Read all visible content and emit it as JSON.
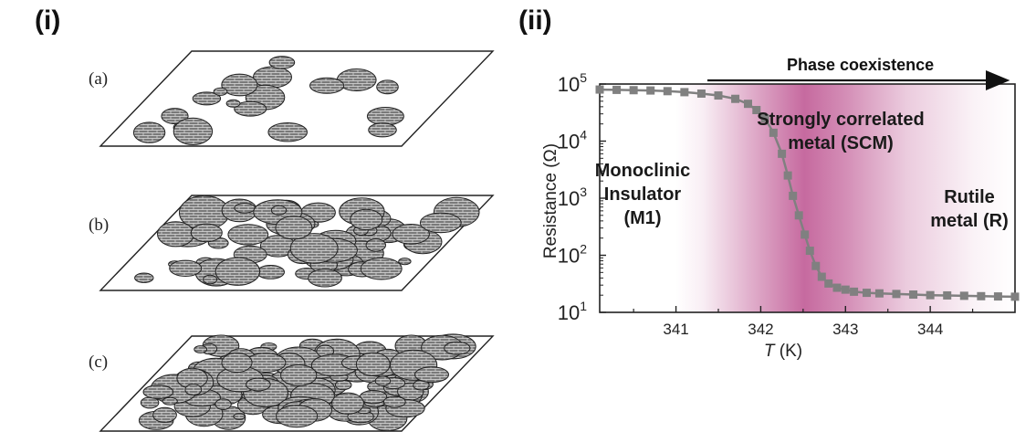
{
  "panels": {
    "left_label": "(i)",
    "right_label": "(ii)",
    "sub_labels": [
      "(a)",
      "(b)",
      "(c)"
    ]
  },
  "annotations": {
    "phase_coexistence": "Phase coexistence",
    "region_m1": [
      "Monoclinic",
      "Insulator",
      "(M1)"
    ],
    "region_scm": [
      "Strongly correlated",
      "metal (SCM)"
    ],
    "region_r": [
      "Rutile",
      "metal (R)"
    ]
  },
  "colors": {
    "series": "#808080",
    "shade": "#b0307a",
    "domain_fill": "#6e6e6e"
  },
  "chart_data": {
    "type": "scatter",
    "title": "",
    "xlabel": "T (K)",
    "ylabel": "Resistance (Ω)",
    "xlim": [
      340.1,
      345.0
    ],
    "ylim": [
      10,
      100000
    ],
    "yscale": "log",
    "x_ticks": [
      "341",
      "342",
      "343",
      "344"
    ],
    "y_ticks": [
      {
        "base": "10",
        "exp": "1"
      },
      {
        "base": "10",
        "exp": "2"
      },
      {
        "base": "10",
        "exp": "3"
      },
      {
        "base": "10",
        "exp": "4"
      },
      {
        "base": "10",
        "exp": "5"
      }
    ],
    "series": [
      {
        "x": [
          340.1,
          340.3,
          340.5,
          340.7,
          340.9,
          341.1,
          341.3,
          341.5,
          341.7,
          341.85,
          341.95,
          342.05,
          342.15,
          342.25,
          342.32,
          342.38,
          342.45,
          342.52,
          342.58,
          342.65,
          342.72,
          342.8,
          342.9,
          343.0,
          343.1,
          343.25,
          343.4,
          343.6,
          343.8,
          344.0,
          344.2,
          344.4,
          344.6,
          344.8,
          345.0
        ],
        "y": [
          80000,
          79000,
          78000,
          77000,
          75000,
          72000,
          68000,
          63000,
          55000,
          45000,
          35000,
          25000,
          14000,
          6000,
          2500,
          1100,
          500,
          230,
          120,
          65,
          42,
          32,
          27,
          25,
          23,
          22,
          21.5,
          21,
          20.5,
          20,
          19.8,
          19.5,
          19.2,
          19,
          18.8
        ]
      }
    ]
  }
}
